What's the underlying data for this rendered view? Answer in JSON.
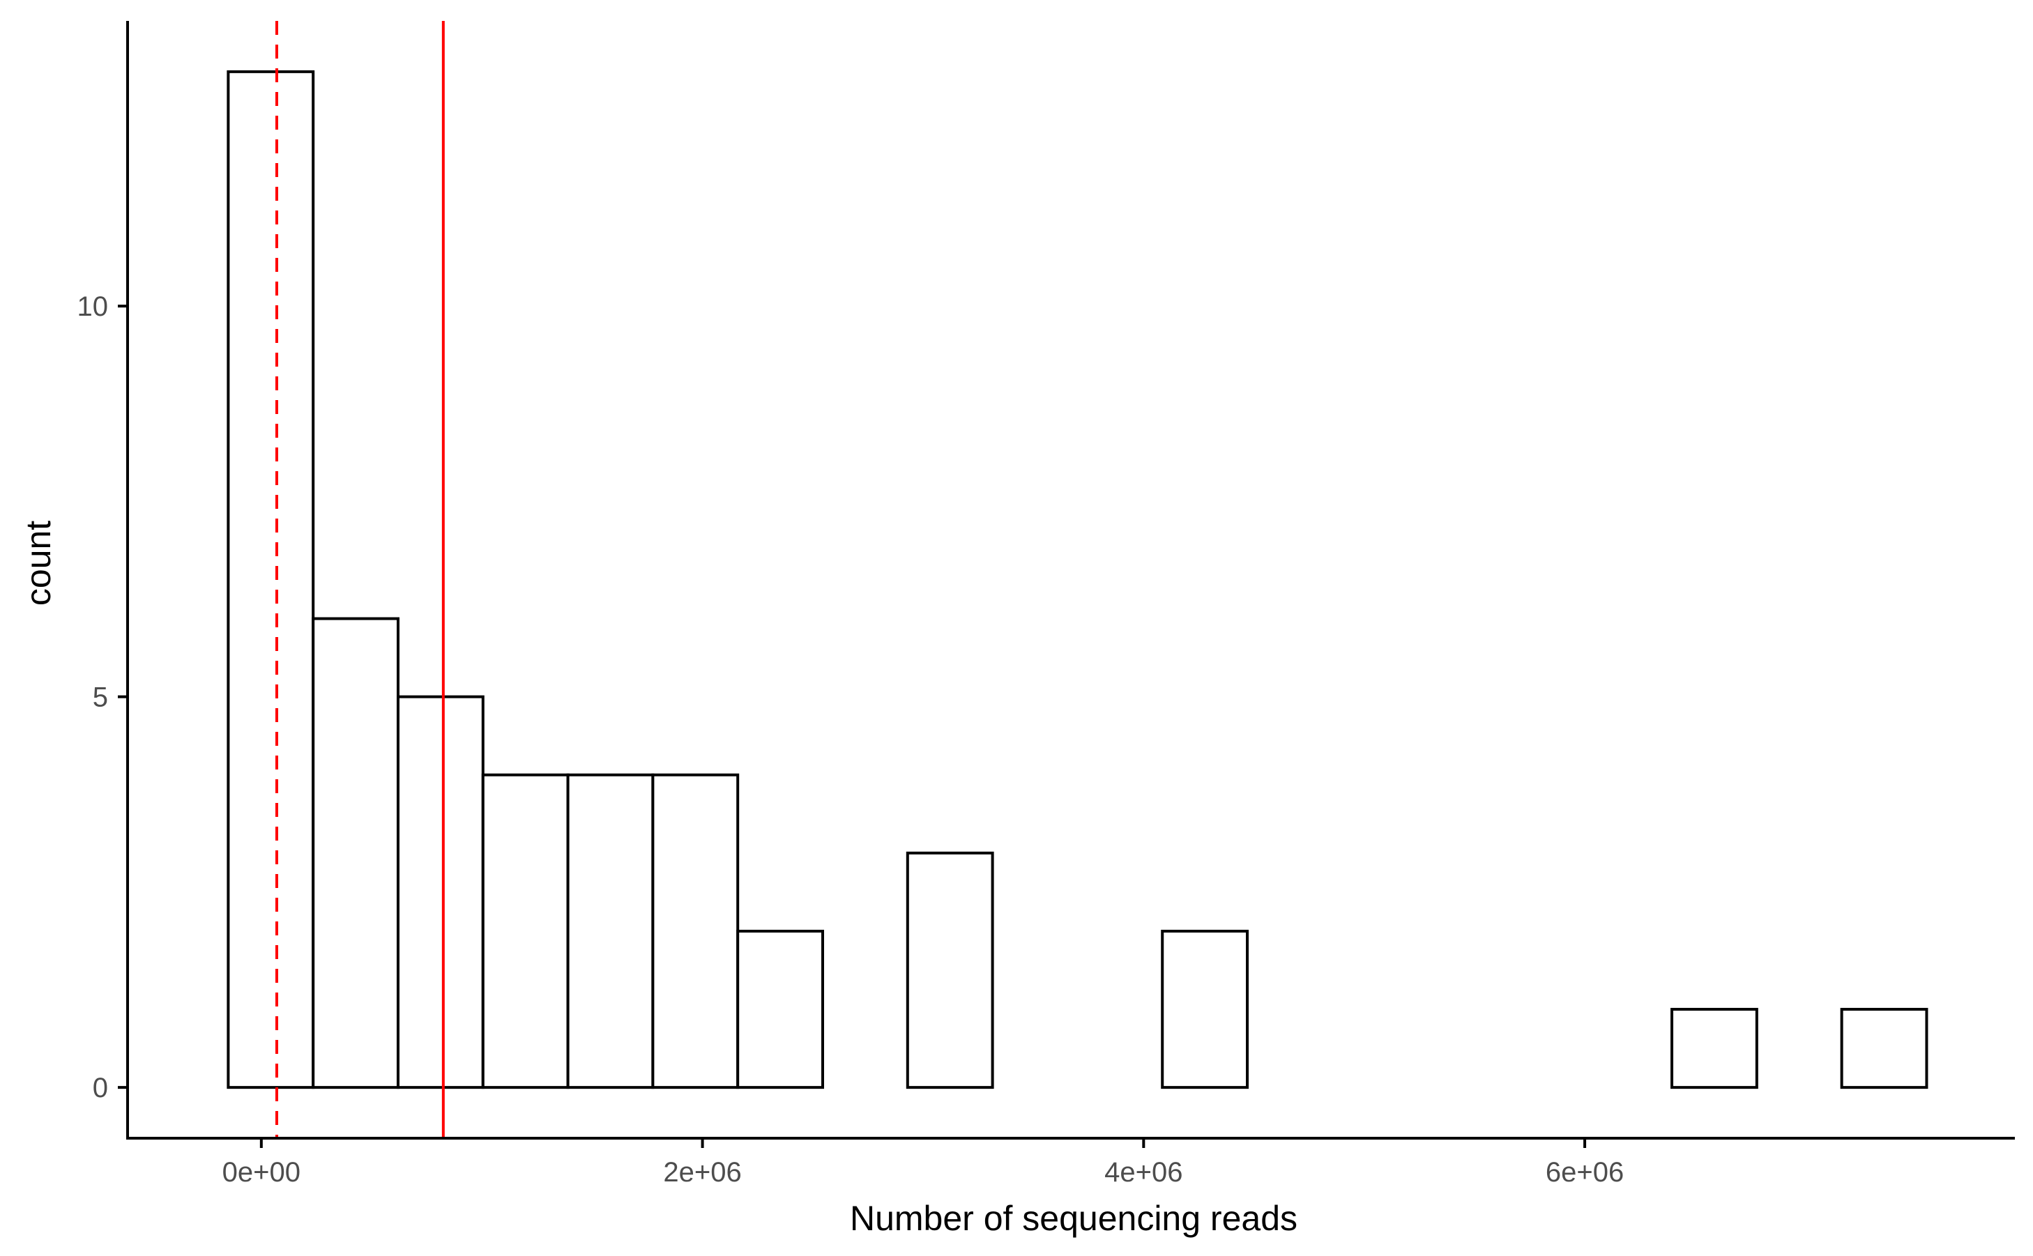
{
  "chart_data": {
    "type": "bar",
    "subtype": "histogram",
    "title": "",
    "xlabel": "Number of sequencing reads",
    "ylabel": "count",
    "bin_width": 385000,
    "bins": [
      {
        "x_start": -150000,
        "x_end": 235000,
        "count": 13
      },
      {
        "x_start": 235000,
        "x_end": 620000,
        "count": 6
      },
      {
        "x_start": 620000,
        "x_end": 1005000,
        "count": 5
      },
      {
        "x_start": 1005000,
        "x_end": 1390000,
        "count": 4
      },
      {
        "x_start": 1390000,
        "x_end": 1775000,
        "count": 4
      },
      {
        "x_start": 1775000,
        "x_end": 2160000,
        "count": 4
      },
      {
        "x_start": 2160000,
        "x_end": 2545000,
        "count": 2
      },
      {
        "x_start": 2545000,
        "x_end": 2930000,
        "count": 0
      },
      {
        "x_start": 2930000,
        "x_end": 3315000,
        "count": 3
      },
      {
        "x_start": 3315000,
        "x_end": 3700000,
        "count": 0
      },
      {
        "x_start": 3700000,
        "x_end": 4085000,
        "count": 0
      },
      {
        "x_start": 4085000,
        "x_end": 4470000,
        "count": 2
      },
      {
        "x_start": 4470000,
        "x_end": 4855000,
        "count": 0
      },
      {
        "x_start": 4855000,
        "x_end": 5240000,
        "count": 0
      },
      {
        "x_start": 5240000,
        "x_end": 5625000,
        "count": 0
      },
      {
        "x_start": 5625000,
        "x_end": 6010000,
        "count": 0
      },
      {
        "x_start": 6010000,
        "x_end": 6395000,
        "count": 0
      },
      {
        "x_start": 6395000,
        "x_end": 6780000,
        "count": 1
      },
      {
        "x_start": 6780000,
        "x_end": 7165000,
        "count": 0
      },
      {
        "x_start": 7165000,
        "x_end": 7550000,
        "count": 1
      }
    ],
    "reference_lines": [
      {
        "x": 70000,
        "color": "#ff0000",
        "style": "dashed"
      },
      {
        "x": 825000,
        "color": "#ff0000",
        "style": "solid"
      }
    ],
    "xlim": [
      -600000,
      7950000
    ],
    "ylim": [
      -0.65,
      13.65
    ],
    "x_ticks": [
      {
        "value": 0,
        "label": "0e+00"
      },
      {
        "value": 2000000,
        "label": "2e+06"
      },
      {
        "value": 4000000,
        "label": "4e+06"
      },
      {
        "value": 6000000,
        "label": "6e+06"
      }
    ],
    "y_ticks": [
      {
        "value": 0,
        "label": "0"
      },
      {
        "value": 5,
        "label": "5"
      },
      {
        "value": 10,
        "label": "10"
      }
    ],
    "grid": false,
    "legend": "none",
    "colors": {
      "bar_fill": "#ffffff",
      "bar_stroke": "#000000",
      "axis": "#000000",
      "tick_label": "#4d4d4d",
      "reference_line": "#ff0000"
    }
  }
}
